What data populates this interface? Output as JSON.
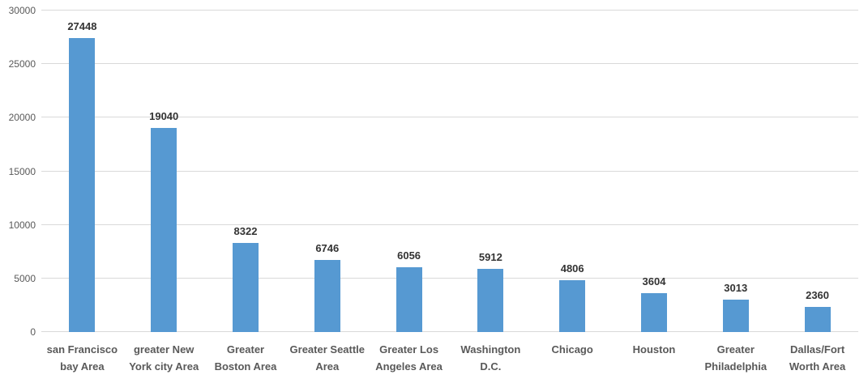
{
  "chart_data": {
    "type": "bar",
    "title": "",
    "xlabel": "",
    "ylabel": "",
    "categories": [
      "san Francisco bay Area",
      "greater New York city Area",
      "Greater Boston Area",
      "Greater Seattle Area",
      "Greater Los Angeles Area",
      "Washington D.C.",
      "Chicago",
      "Houston",
      "Greater Philadelphia",
      "Dallas/Fort Worth Area"
    ],
    "values": [
      27448,
      19040,
      8322,
      6746,
      6056,
      5912,
      4806,
      3604,
      3013,
      2360
    ],
    "ylim": [
      0,
      30000
    ],
    "yticks": [
      0,
      5000,
      10000,
      15000,
      20000,
      25000,
      30000
    ],
    "grid": "horizontal gridlines on",
    "legend": "none",
    "data_labels": "value shown above each bar",
    "colors": {
      "bar": "#5699d2",
      "gridline": "#d9d9d9",
      "axis_text": "#595959",
      "data_label_text": "#333333",
      "background": "#ffffff"
    }
  }
}
